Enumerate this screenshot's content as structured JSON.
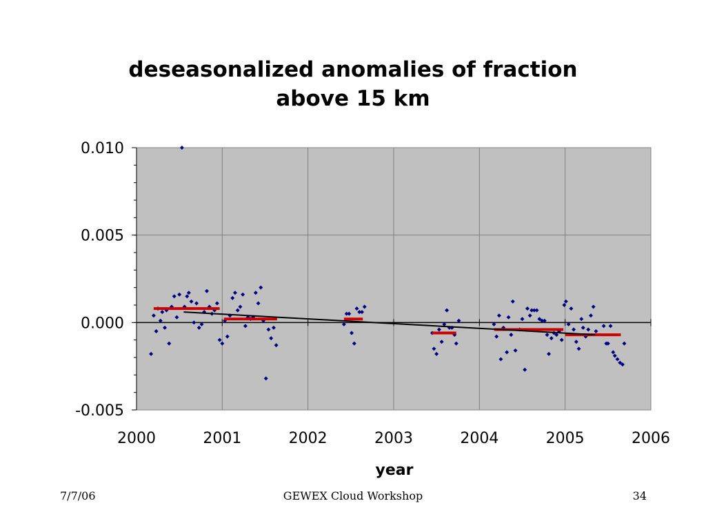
{
  "slide": {
    "footer_date": "7/7/06",
    "footer_center": "GEWEX Cloud Workshop",
    "footer_page": "34"
  },
  "colors": {
    "plot_background": "#c0c0c0",
    "points": "#000080",
    "monthly_means": "#cc0000",
    "trend": "#000000"
  },
  "chart_data": {
    "type": "scatter",
    "title_lines": [
      "deseasonalized anomalies of fraction",
      "above 15 km"
    ],
    "xlabel": "year",
    "ylabel": "",
    "xlim": [
      2000,
      2006
    ],
    "ylim": [
      -0.005,
      0.01
    ],
    "x_ticks": [
      "2000",
      "2001",
      "2002",
      "2003",
      "2004",
      "2005",
      "2006"
    ],
    "y_ticks": [
      "0.010",
      "0.005",
      "0.000",
      "-0.005"
    ],
    "grid": true,
    "legend": "none",
    "series": [
      {
        "marker": "diamond",
        "points": [
          [
            2000.17,
            -0.0018
          ],
          [
            2000.2,
            0.0004
          ],
          [
            2000.23,
            -0.0005
          ],
          [
            2000.25,
            0.0008
          ],
          [
            2000.28,
            0.0001
          ],
          [
            2000.3,
            0.0006
          ],
          [
            2000.33,
            -0.0003
          ],
          [
            2000.35,
            0.0007
          ],
          [
            2000.38,
            -0.0012
          ],
          [
            2000.41,
            0.0009
          ],
          [
            2000.44,
            0.0015
          ],
          [
            2000.47,
            0.0003
          ],
          [
            2000.5,
            0.0016
          ],
          [
            2000.53,
            0.01
          ],
          [
            2000.56,
            0.0009
          ],
          [
            2000.59,
            0.0015
          ],
          [
            2000.61,
            0.0017
          ],
          [
            2000.64,
            0.0012
          ],
          [
            2000.67,
            0.0
          ],
          [
            2000.7,
            0.0011
          ],
          [
            2000.73,
            -0.0003
          ],
          [
            2000.76,
            -0.0001
          ],
          [
            2000.79,
            0.0006
          ],
          [
            2000.82,
            0.0018
          ],
          [
            2000.85,
            0.0009
          ],
          [
            2000.88,
            0.0005
          ],
          [
            2000.91,
            0.0007
          ],
          [
            2000.94,
            0.0011
          ],
          [
            2000.97,
            -0.001
          ],
          [
            2001.0,
            -0.0012
          ],
          [
            2001.03,
            0.0001
          ],
          [
            2001.06,
            -0.0008
          ],
          [
            2001.09,
            0.0004
          ],
          [
            2001.12,
            0.0014
          ],
          [
            2001.15,
            0.0017
          ],
          [
            2001.18,
            0.0007
          ],
          [
            2001.21,
            0.0009
          ],
          [
            2001.24,
            0.0016
          ],
          [
            2001.27,
            -0.0002
          ],
          [
            2001.3,
            0.0003
          ],
          [
            2001.33,
            0.0002
          ],
          [
            2001.36,
            0.0003
          ],
          [
            2001.39,
            0.0017
          ],
          [
            2001.42,
            0.0011
          ],
          [
            2001.45,
            0.002
          ],
          [
            2001.48,
            0.0001
          ],
          [
            2001.51,
            -0.0032
          ],
          [
            2001.54,
            -0.0004
          ],
          [
            2001.57,
            -0.0009
          ],
          [
            2001.6,
            -0.0003
          ],
          [
            2001.63,
            -0.0013
          ],
          [
            2002.42,
            -0.0001
          ],
          [
            2002.45,
            0.0005
          ],
          [
            2002.48,
            0.0005
          ],
          [
            2002.51,
            -0.0006
          ],
          [
            2002.54,
            -0.0012
          ],
          [
            2002.57,
            0.0008
          ],
          [
            2002.6,
            0.0006
          ],
          [
            2002.63,
            0.0006
          ],
          [
            2002.66,
            0.0009
          ],
          [
            2003.45,
            -0.0006
          ],
          [
            2003.47,
            -0.0015
          ],
          [
            2003.5,
            -0.0018
          ],
          [
            2003.53,
            -0.0004
          ],
          [
            2003.56,
            -0.0011
          ],
          [
            2003.59,
            -0.0001
          ],
          [
            2003.62,
            0.0007
          ],
          [
            2003.65,
            -0.0003
          ],
          [
            2003.68,
            -0.0003
          ],
          [
            2003.71,
            -0.0007
          ],
          [
            2003.73,
            -0.0012
          ],
          [
            2003.76,
            0.0001
          ],
          [
            2004.17,
            -0.0001
          ],
          [
            2004.2,
            -0.0008
          ],
          [
            2004.23,
            0.0004
          ],
          [
            2004.25,
            -0.0021
          ],
          [
            2004.28,
            -0.0003
          ],
          [
            2004.32,
            -0.0017
          ],
          [
            2004.34,
            0.0003
          ],
          [
            2004.37,
            -0.0007
          ],
          [
            2004.39,
            0.0012
          ],
          [
            2004.42,
            -0.0016
          ],
          [
            2004.47,
            -0.0004
          ],
          [
            2004.5,
            0.0002
          ],
          [
            2004.53,
            -0.0027
          ],
          [
            2004.56,
            0.0008
          ],
          [
            2004.59,
            0.0004
          ],
          [
            2004.61,
            0.0007
          ],
          [
            2004.64,
            0.0007
          ],
          [
            2004.67,
            0.0007
          ],
          [
            2004.7,
            0.0002
          ],
          [
            2004.73,
            0.0001
          ],
          [
            2004.76,
            0.0001
          ],
          [
            2004.79,
            -0.0007
          ],
          [
            2004.81,
            -0.0018
          ],
          [
            2004.84,
            -0.0009
          ],
          [
            2004.87,
            -0.0006
          ],
          [
            2004.9,
            -0.0007
          ],
          [
            2004.93,
            -0.0005
          ],
          [
            2004.96,
            -0.001
          ],
          [
            2004.99,
            0.001
          ],
          [
            2005.01,
            0.0012
          ],
          [
            2005.04,
            -0.0001
          ],
          [
            2005.07,
            0.0008
          ],
          [
            2005.1,
            -0.0004
          ],
          [
            2005.13,
            -0.0011
          ],
          [
            2005.16,
            -0.0015
          ],
          [
            2005.19,
            0.0002
          ],
          [
            2005.21,
            -0.0003
          ],
          [
            2005.24,
            -0.0008
          ],
          [
            2005.27,
            -0.0004
          ],
          [
            2005.3,
            0.0004
          ],
          [
            2005.33,
            0.0009
          ],
          [
            2005.36,
            -0.0005
          ],
          [
            2005.45,
            -0.0002
          ],
          [
            2005.48,
            -0.0012
          ],
          [
            2005.5,
            -0.0012
          ],
          [
            2005.53,
            -0.0002
          ],
          [
            2005.56,
            -0.0017
          ],
          [
            2005.58,
            -0.0019
          ],
          [
            2005.61,
            -0.0021
          ],
          [
            2005.64,
            -0.0023
          ],
          [
            2005.67,
            -0.0024
          ],
          [
            2005.69,
            -0.0012
          ]
        ]
      }
    ],
    "monthly_means": [
      {
        "x": [
          2000.2,
          2000.97
        ],
        "y": 0.0008
      },
      {
        "x": [
          2001.02,
          2001.64
        ],
        "y": 0.0002
      },
      {
        "x": [
          2002.42,
          2002.64
        ],
        "y": 0.0002
      },
      {
        "x": [
          2003.45,
          2003.73
        ],
        "y": -0.0006
      },
      {
        "x": [
          2004.17,
          2004.98
        ],
        "y": -0.0004
      },
      {
        "x": [
          2005.0,
          2005.65
        ],
        "y": -0.0007
      }
    ],
    "trend_line": {
      "x": [
        2000.55,
        2005.35
      ],
      "y": [
        0.0006,
        -0.0007
      ]
    }
  }
}
